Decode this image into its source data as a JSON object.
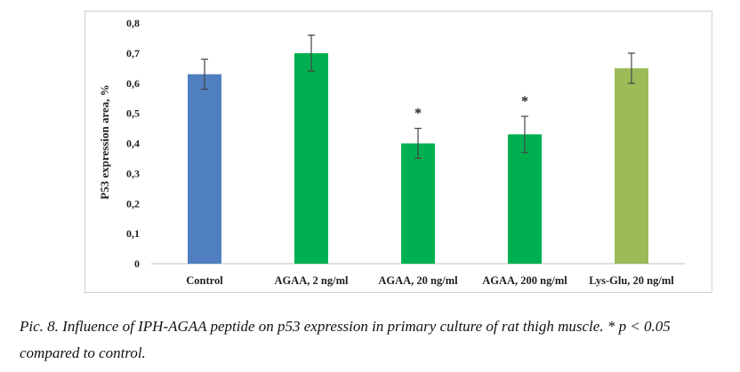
{
  "chart_data": {
    "type": "bar",
    "ylabel": "P53 expression area, %",
    "ylim": [
      0,
      0.8
    ],
    "yticks": [
      0,
      0.1,
      0.2,
      0.3,
      0.4,
      0.5,
      0.6,
      0.7,
      0.8
    ],
    "ytick_labels": [
      "0",
      "0,1",
      "0,2",
      "0,3",
      "0,4",
      "0,5",
      "0,6",
      "0,7",
      "0,8"
    ],
    "grid": false,
    "categories": [
      "Control",
      "AGAA, 2 ng/ml",
      "AGAA, 20 ng/ml",
      "AGAA, 200 ng/ml",
      "Lys-Glu, 20 ng/ml"
    ],
    "values": [
      0.63,
      0.7,
      0.4,
      0.43,
      0.65
    ],
    "errors": [
      0.05,
      0.06,
      0.05,
      0.06,
      0.05
    ],
    "significance": [
      "",
      "",
      "*",
      "*",
      ""
    ],
    "colors": [
      "#4f7fbf",
      "#00b050",
      "#00b050",
      "#00b050",
      "#9bbb59"
    ]
  },
  "caption": "Pic. 8. Influence of IPH-AGAA peptide on p53 expression in primary culture of rat thigh muscle. * p < 0.05 compared to control."
}
